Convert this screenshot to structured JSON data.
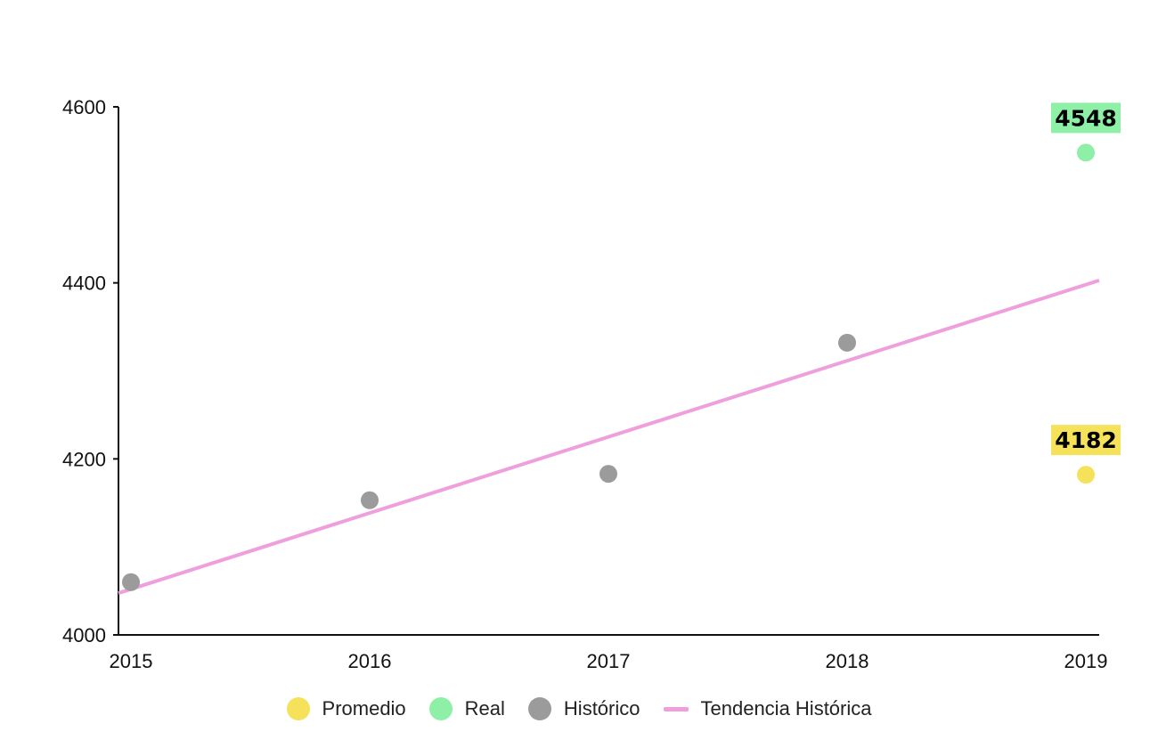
{
  "chart_data": {
    "type": "scatter",
    "title": "",
    "xlabel": "",
    "ylabel": "",
    "x_ticks": [
      "2015",
      "2016",
      "2017",
      "2018",
      "2019"
    ],
    "y_ticks": [
      "4000",
      "4200",
      "4400",
      "4600"
    ],
    "xlim": [
      2015,
      2019
    ],
    "ylim": [
      4000,
      4600
    ],
    "grid": false,
    "legend_position": "bottom",
    "series": [
      {
        "name": "Promedio",
        "type": "scatter",
        "color": "#f6e25a",
        "points": [
          {
            "x": 2019,
            "y": 4182
          }
        ],
        "data_label": "4182"
      },
      {
        "name": "Real",
        "type": "scatter",
        "color": "#8ef0a6",
        "points": [
          {
            "x": 2019,
            "y": 4548
          }
        ],
        "data_label": "4548"
      },
      {
        "name": "Histórico",
        "type": "scatter",
        "color": "#9b9b9b",
        "points": [
          {
            "x": 2015,
            "y": 4060
          },
          {
            "x": 2016,
            "y": 4153
          },
          {
            "x": 2017,
            "y": 4183
          },
          {
            "x": 2018,
            "y": 4332
          }
        ]
      },
      {
        "name": "Tendencia Histórica",
        "type": "line",
        "color": "#ee9fdc",
        "points": [
          {
            "x": 2015,
            "y": 4052
          },
          {
            "x": 2019,
            "y": 4398
          }
        ]
      }
    ]
  }
}
